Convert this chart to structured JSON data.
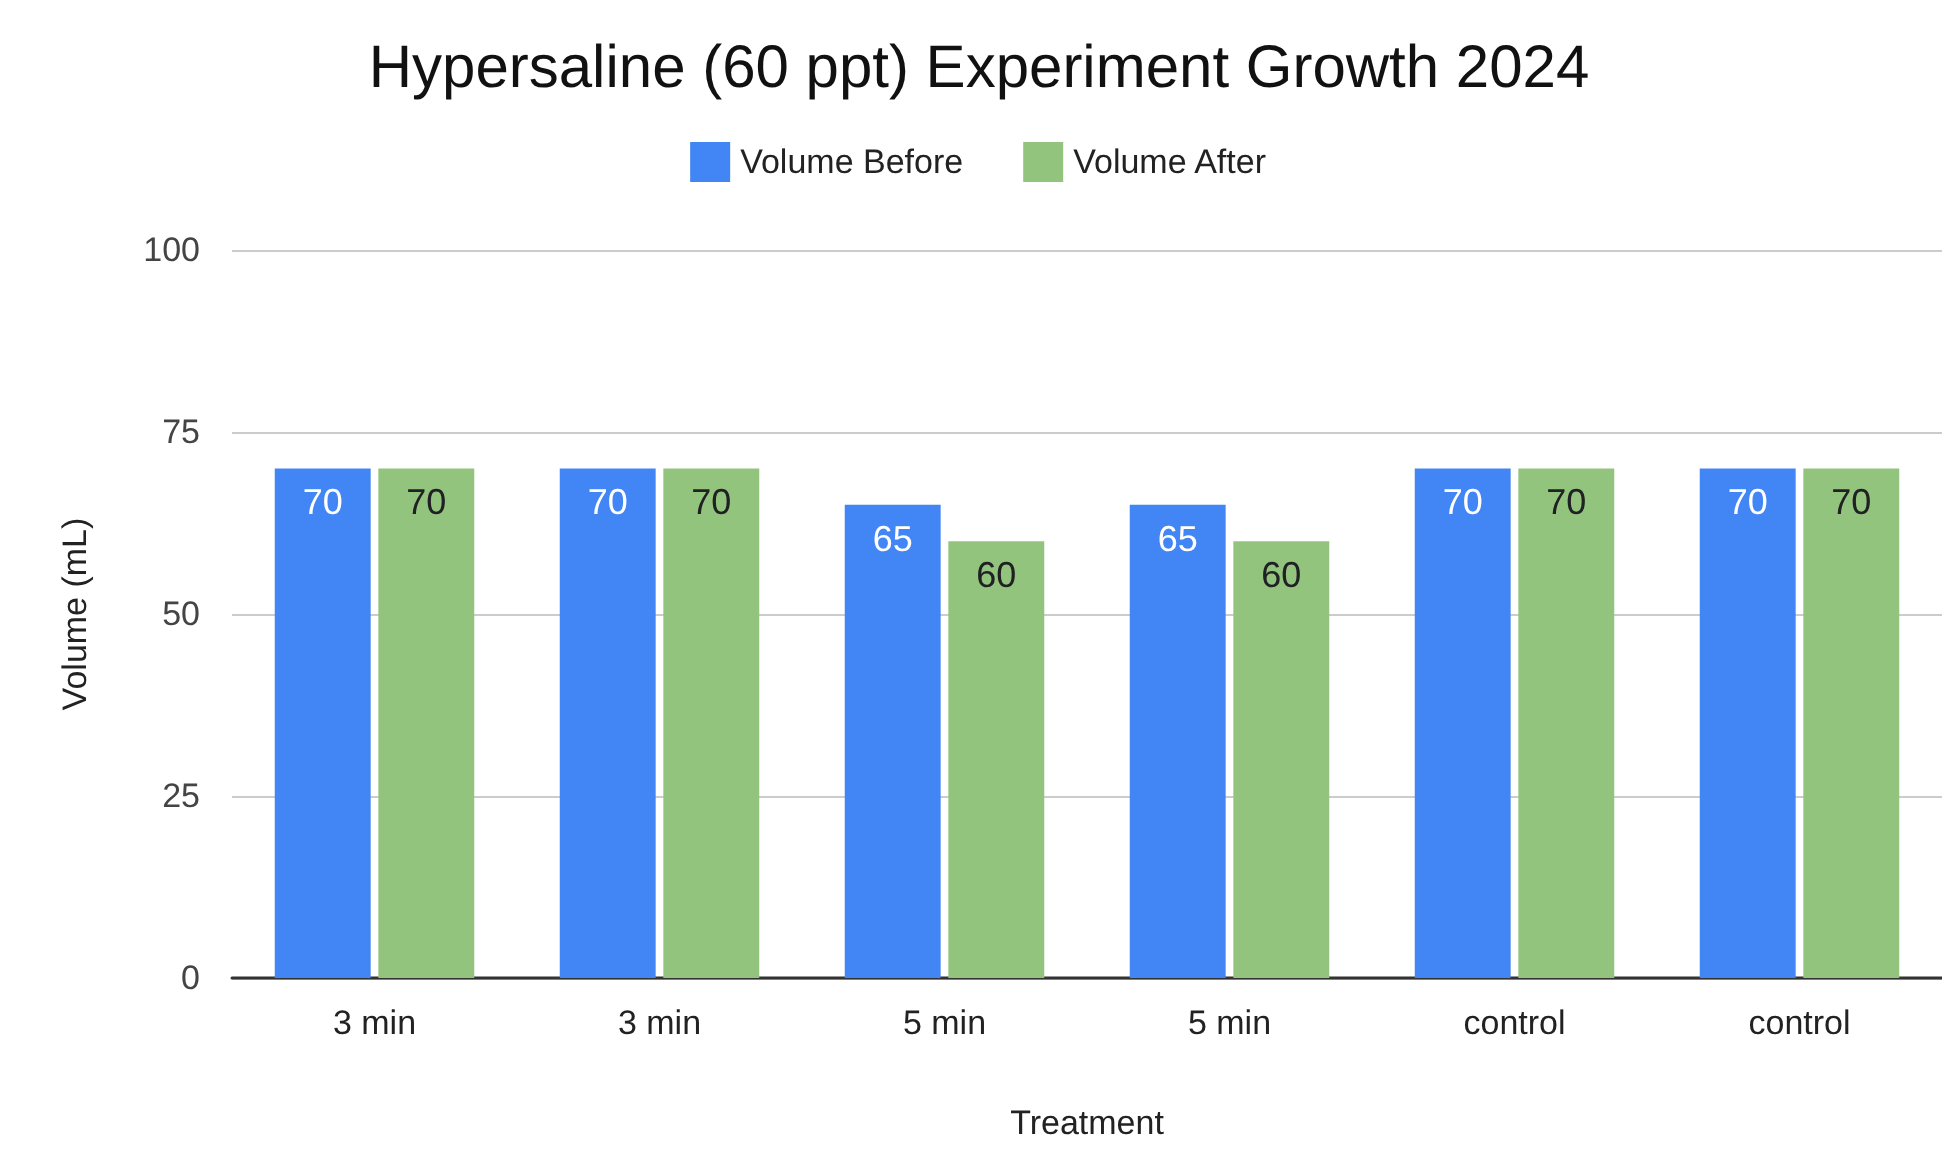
{
  "chart_data": {
    "type": "bar",
    "title": "Hypersaline (60 ppt) Experiment Growth 2024",
    "xlabel": "Treatment",
    "ylabel": "Volume (mL)",
    "categories": [
      "3 min",
      "3 min",
      "5 min",
      "5 min",
      "control",
      "control"
    ],
    "series": [
      {
        "name": "Volume Before",
        "color": "#4285f4",
        "values": [
          70,
          70,
          65,
          65,
          70,
          70
        ]
      },
      {
        "name": "Volume After",
        "color": "#93c47d",
        "values": [
          70,
          70,
          60,
          60,
          70,
          70
        ]
      }
    ],
    "ylim": [
      0,
      100
    ],
    "yticks": [
      0,
      25,
      50,
      75,
      100
    ],
    "grid": "y",
    "legend": "top",
    "data_labels": true
  }
}
